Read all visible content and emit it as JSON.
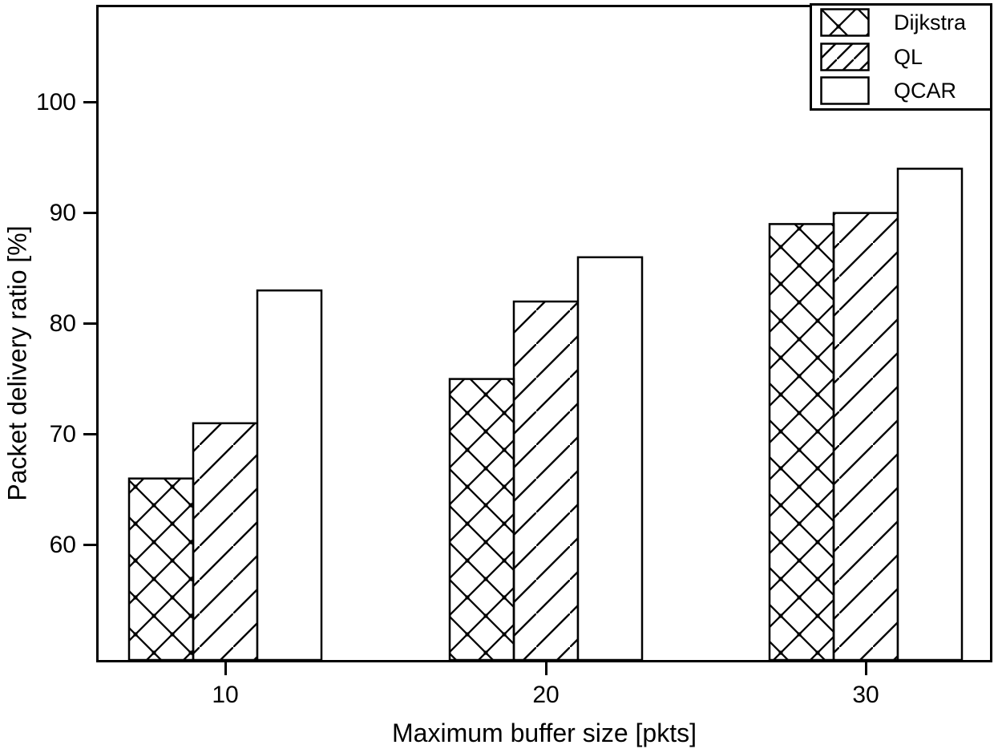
{
  "figure": {
    "background": "#ffffff",
    "foreground": "#000000"
  },
  "chart_data": {
    "type": "bar",
    "title": "",
    "xlabel": "Maximum buffer size [pkts]",
    "ylabel": "Packet delivery ratio [%]",
    "categories": [
      "10",
      "20",
      "30"
    ],
    "series": [
      {
        "name": "Dijkstra",
        "pattern": "crosshatch-dots",
        "values": [
          66,
          75,
          89
        ]
      },
      {
        "name": "QL",
        "pattern": "diagonal-forward",
        "values": [
          71,
          82,
          90
        ]
      },
      {
        "name": "QCAR",
        "pattern": "solid-white",
        "values": [
          83,
          86,
          94
        ]
      }
    ],
    "yticks": [
      60,
      70,
      80,
      90,
      100
    ],
    "ylim": [
      49.6,
      108.6
    ],
    "grid": false,
    "legend_position": "top-right",
    "bar_fill": "#ffffff",
    "bar_border": "#000000"
  }
}
